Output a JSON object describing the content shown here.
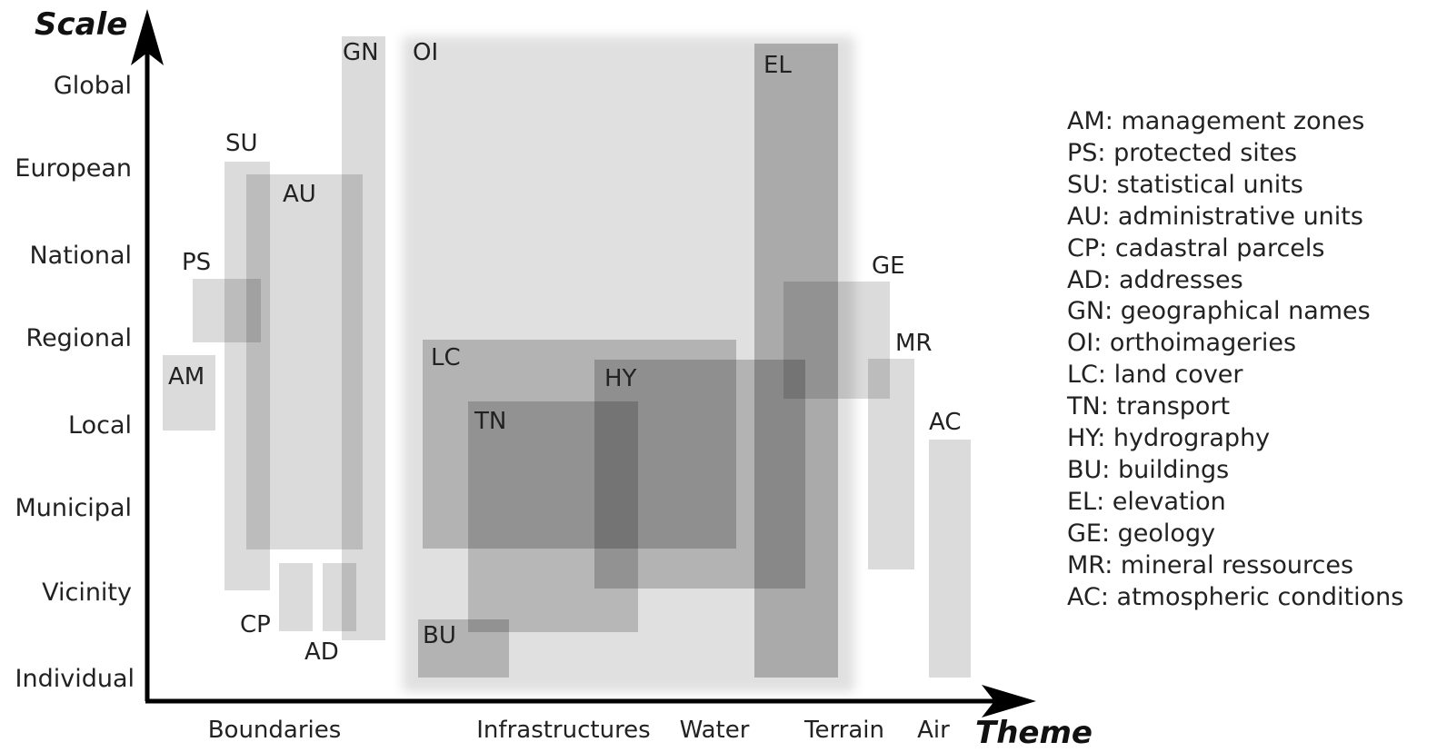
{
  "axes": {
    "y_title": "Scale",
    "x_title": "Theme",
    "scales": [
      "Global",
      "European",
      "National",
      "Regional",
      "Local",
      "Municipal",
      "Vicinity",
      "Individual"
    ],
    "themes": [
      "Boundaries",
      "Infrastructures",
      "Water",
      "Terrain",
      "Air"
    ]
  },
  "themes_regions": [
    {
      "code": "OI",
      "shade": 0.12,
      "blur": true
    },
    {
      "code": "GN",
      "shade": 0.14
    },
    {
      "code": "SU",
      "shade": 0.14
    },
    {
      "code": "AU",
      "shade": 0.14
    },
    {
      "code": "PS",
      "shade": 0.14
    },
    {
      "code": "AM",
      "shade": 0.14
    },
    {
      "code": "CP",
      "shade": 0.14
    },
    {
      "code": "AD",
      "shade": 0.14
    },
    {
      "code": "LC",
      "shade": 0.2
    },
    {
      "code": "TN",
      "shade": 0.18
    },
    {
      "code": "HY",
      "shade": 0.2
    },
    {
      "code": "BU",
      "shade": 0.2
    },
    {
      "code": "EL",
      "shade": 0.24
    },
    {
      "code": "GE",
      "shade": 0.14
    },
    {
      "code": "MR",
      "shade": 0.14
    },
    {
      "code": "AC",
      "shade": 0.14
    }
  ],
  "legend": [
    "AM: management zones",
    "PS: protected sites",
    "SU: statistical units",
    "AU: administrative units",
    "CP: cadastral parcels",
    "AD: addresses",
    "GN: geographical names",
    "OI: orthoimageries",
    "LC: land cover",
    "TN: transport",
    "HY: hydrography",
    "BU: buildings",
    "EL: elevation",
    "GE: geology",
    "MR: mineral ressources",
    "AC: atmospheric conditions"
  ],
  "colors": {
    "axis": "#000000",
    "region_fill": "#000000"
  }
}
